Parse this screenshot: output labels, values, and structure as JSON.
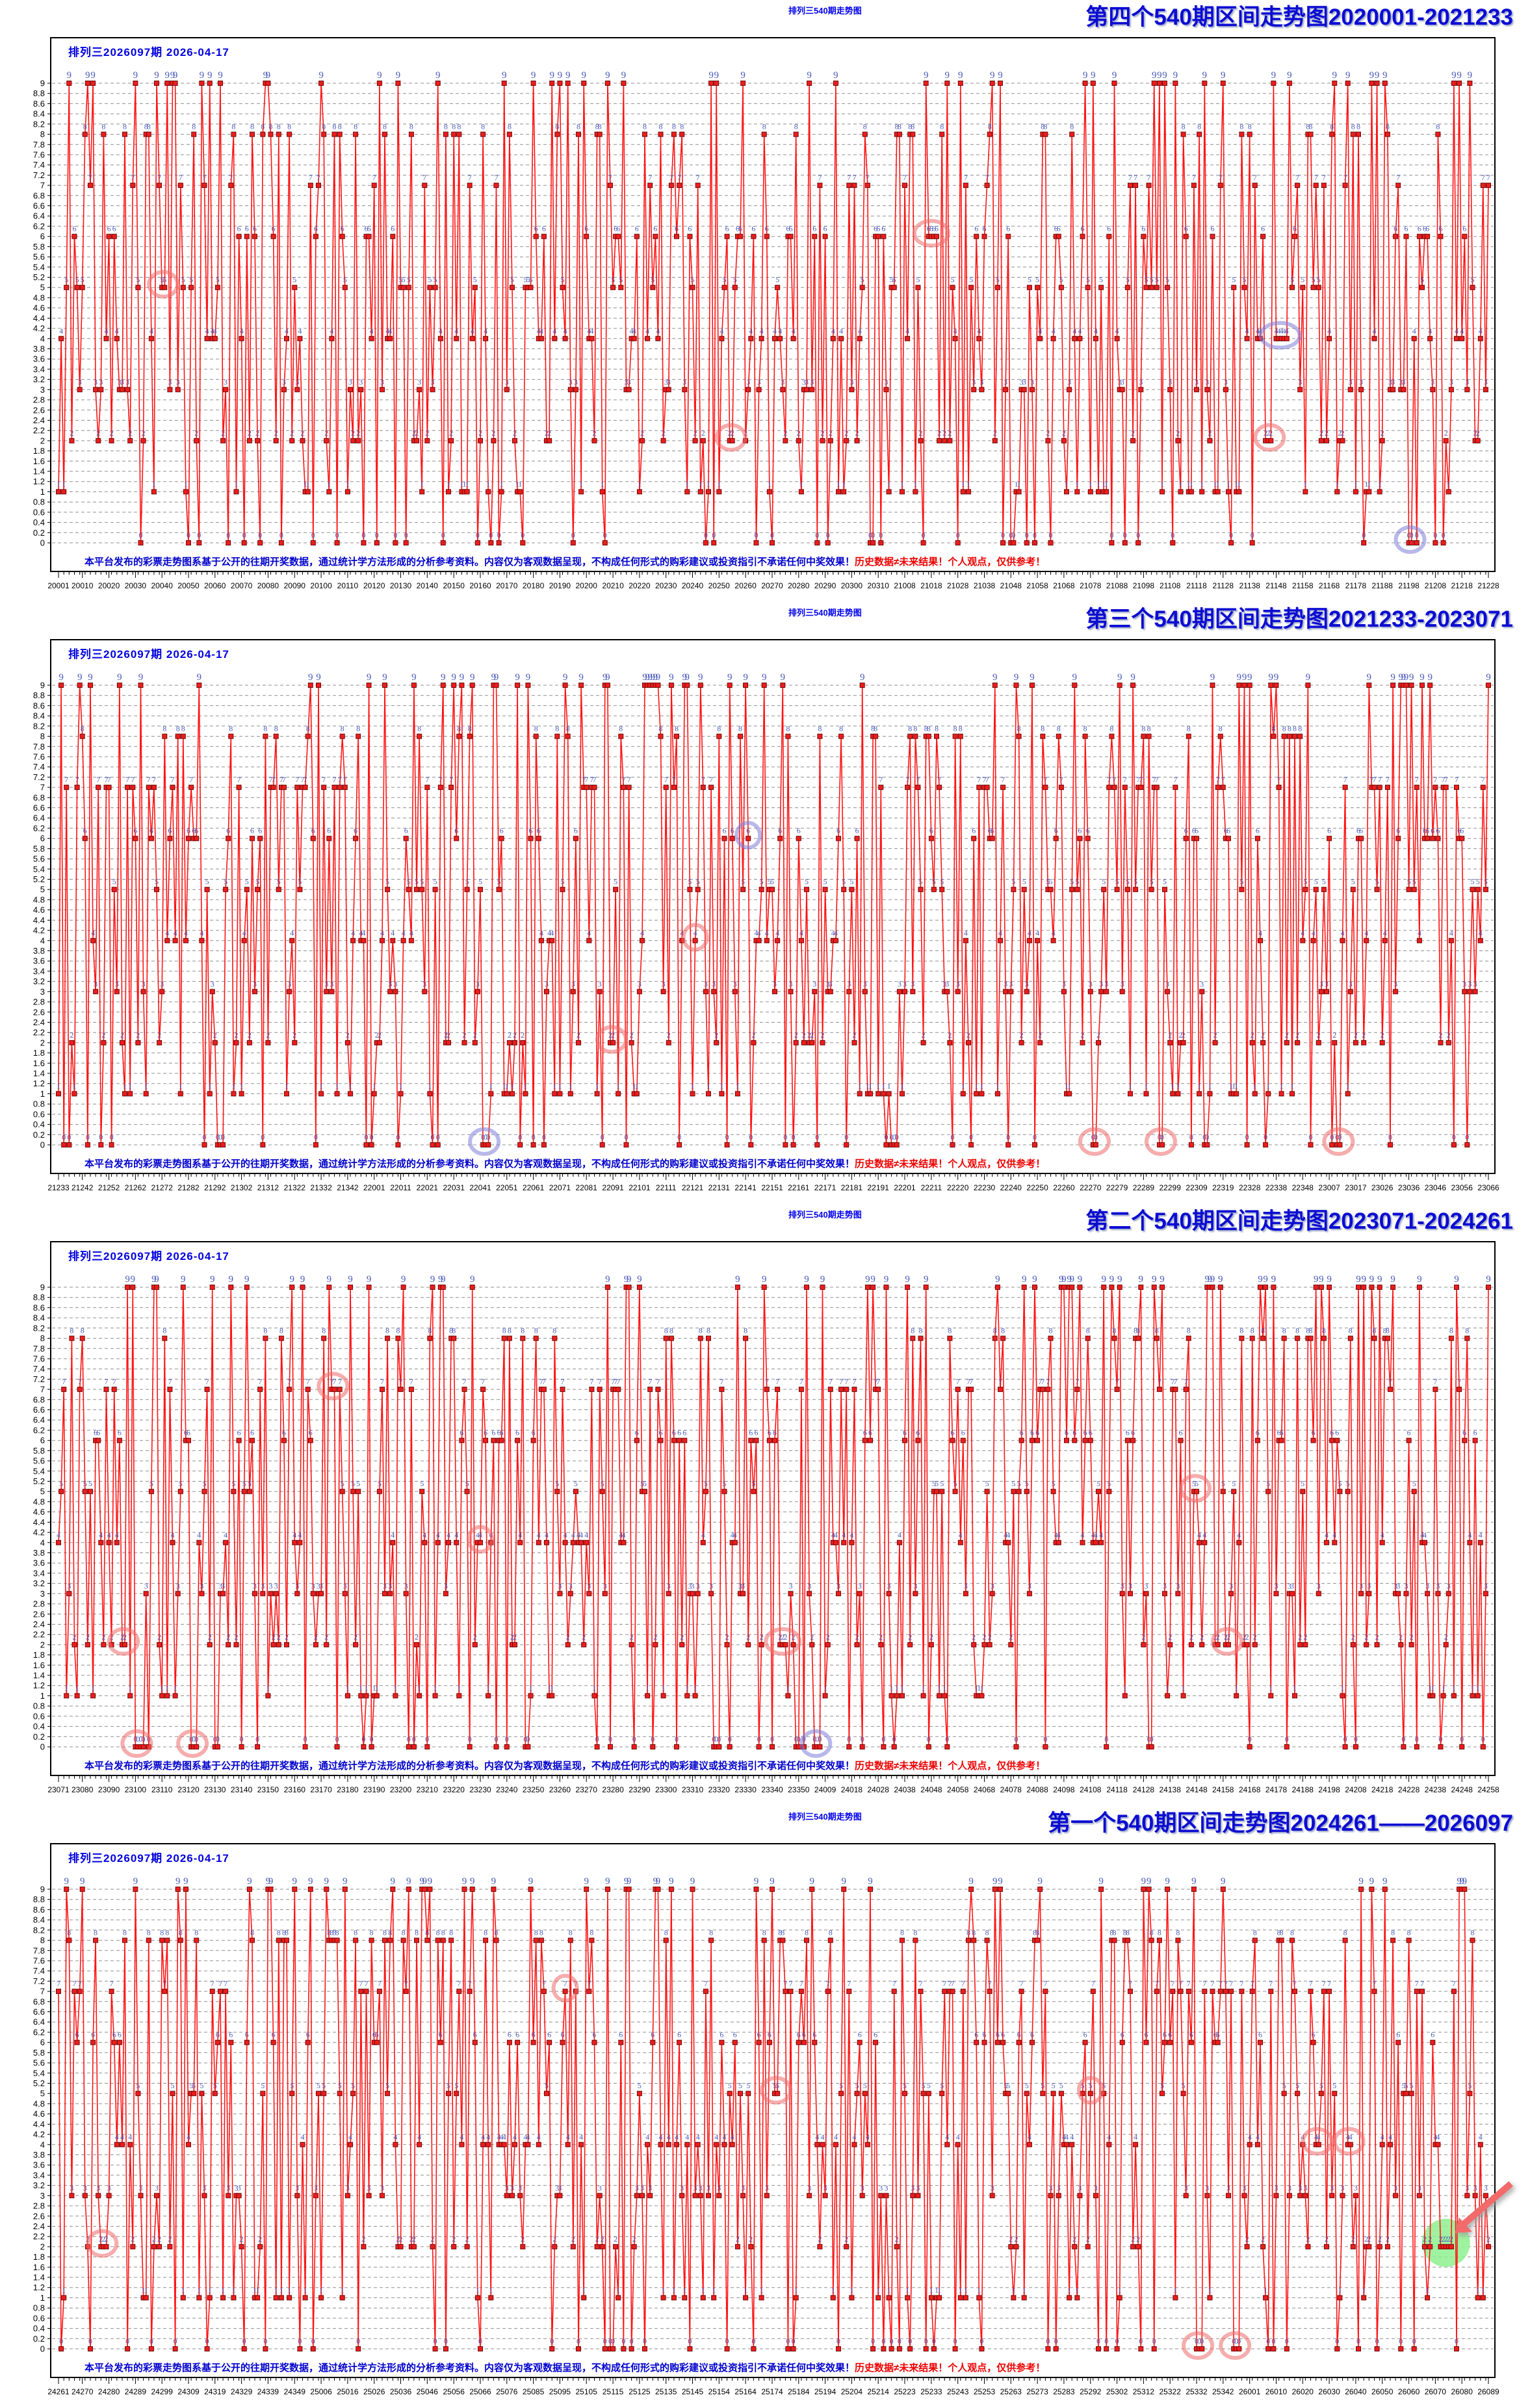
{
  "shared": {
    "mini_title": "排列三540期走势图",
    "draw_info": "排列三2026097期  2026-04-17",
    "disclaimer_blue": "本平台发布的彩票走势图系基于公开的往期开奖数据，通过统计学方法形成的分析参考资料。内容仅为客观数据呈现，不构成任何形式的购彩建议或投资指引不承诺任何中奖效果！",
    "disclaimer_red": "历史数据≠未来结果！个人观点，仅供参考！"
  },
  "colors": {
    "line": "#ff1414",
    "marker_fill": "#ee1c1c",
    "marker_stroke": "#6e0a0a",
    "point_label": "#4a5ab8",
    "grid": "#909090",
    "axis_text": "#000000",
    "ring_red": "#ee6a6a",
    "ring_blue": "#7d7dd8",
    "highlight_green": "#8ef08e",
    "arrow_red": "#f26a6a"
  },
  "axis": {
    "y_tick_labels": [
      "9",
      "8.8",
      "8.6",
      "8.4",
      "8.2",
      "8",
      "7.8",
      "7.6",
      "7.4",
      "7.2",
      "7",
      "6.8",
      "6.6",
      "6.4",
      "6.2",
      "6",
      "5.8",
      "5.6",
      "5.4",
      "5.2",
      "5",
      "4.8",
      "4.6",
      "4.4",
      "4.2",
      "4",
      "3.8",
      "3.6",
      "3.4",
      "3.2",
      "3",
      "2.8",
      "2.6",
      "2.4",
      "2.2",
      "2",
      "1.8",
      "1.6",
      "1.4",
      "1.2",
      "1",
      "0.8",
      "0.6",
      "0.4",
      "0.2",
      "0"
    ]
  },
  "panels": [
    {
      "title": "第四个540期区间走势图2020001-2021233"
    },
    {
      "title": "第三个540期区间走势图2021233-2023071"
    },
    {
      "title": "第二个540期区间走势图2023071-2024261"
    },
    {
      "title": "第一个540期区间走势图2024261——2026097"
    }
  ],
  "chart_data": [
    {
      "type": "line",
      "title": "第四个540期区间走势图2020001-2021233",
      "ylim": [
        0,
        9
      ],
      "y_step": 0.2,
      "legend": "none",
      "grid": "dashed-horizontal",
      "x_tick_labels": [
        "20001",
        "20010",
        "20020",
        "20030",
        "20040",
        "20050",
        "20060",
        "20070",
        "20080",
        "20090",
        "20100",
        "20110",
        "20120",
        "20130",
        "20140",
        "20150",
        "20160",
        "20170",
        "20180",
        "20190",
        "20200",
        "20210",
        "20220",
        "20230",
        "20240",
        "20250",
        "20260",
        "20270",
        "20280",
        "20290",
        "20300",
        "20310",
        "21008",
        "21018",
        "21028",
        "21038",
        "21048",
        "21058",
        "21068",
        "21078",
        "21088",
        "21098",
        "21108",
        "21118",
        "21128",
        "21138",
        "21148",
        "21158",
        "21168",
        "21178",
        "21188",
        "21198",
        "21208",
        "21218",
        "21228"
      ],
      "values_digits": "141592653589793238462643383279502884197169399375105820974944592307816406286208998628034825342117067982148086513282306647093844609550582231725359408128481117450284102701938521105559644622948954930381964428810975665933446128475648233786783165271201909145648566923460348610454326648213393607260249141273724587006606315588174881520920962829254091715364367892590360011330530548820466521384146951941511609433057270365759591953092186117381932611793105118548074462379962749567351885752724891227938183011949129833673362440656643086021394946395224737",
      "annotations": [
        {
          "i": 39,
          "v": 5,
          "len": 2,
          "c": "red"
        },
        {
          "i": 328,
          "v": 6,
          "len": 3,
          "c": "red"
        },
        {
          "i": 253,
          "v": 2,
          "len": 2,
          "c": "red"
        },
        {
          "i": 456,
          "v": 2,
          "len": 2,
          "c": "red"
        },
        {
          "i": 459,
          "v": 4,
          "len": 4,
          "c": "blue"
        },
        {
          "i": 509,
          "v": 0,
          "len": 2,
          "c": "blue"
        }
      ]
    },
    {
      "type": "line",
      "title": "第三个540期区间走势图2021233-2023071",
      "ylim": [
        0,
        9
      ],
      "y_step": 0.2,
      "legend": "none",
      "grid": "dashed-horizontal",
      "x_tick_labels": [
        "21233",
        "21242",
        "21252",
        "21262",
        "21272",
        "21282",
        "21292",
        "21302",
        "21312",
        "21322",
        "21332",
        "21342",
        "22001",
        "22011",
        "22021",
        "22031",
        "22041",
        "22051",
        "22061",
        "22071",
        "22081",
        "22091",
        "22101",
        "22111",
        "22121",
        "22131",
        "22141",
        "22151",
        "22161",
        "22171",
        "22181",
        "22191",
        "22201",
        "22211",
        "22220",
        "22230",
        "22240",
        "22250",
        "22260",
        "22270",
        "22279",
        "22289",
        "22299",
        "22309",
        "22319",
        "22328",
        "22338",
        "22348",
        "23007",
        "23017",
        "23026",
        "23036",
        "23046",
        "23056",
        "23066"
      ],
      "values_digits": "190702179860943702770539217176293176752384674818467669405132000568127145263560827785771342757789609173637178721468440901224953430146549585371050792279689258923542019956112129021960864034418159813629774771309960518707211349999998372978049951059731732816096318595024459455346908302642522308253344685035261931188171010003137838752886587533208381420617177669147303598253490428755468731159562863882353787593751957781857780532171226806613001927876611195909216420198971828182845904523536028747135266249775724709369995957496696762772407663035354759",
      "annotations": [
        {
          "i": 260,
          "v": 6,
          "len": 1,
          "c": "blue"
        },
        {
          "i": 240,
          "v": 4,
          "len": 1,
          "c": "red"
        },
        {
          "i": 208,
          "v": 2,
          "len": 2,
          "c": "red"
        },
        {
          "i": 160,
          "v": 0,
          "len": 2,
          "c": "blue"
        },
        {
          "i": 390,
          "v": 0,
          "len": 2,
          "c": "red"
        },
        {
          "i": 415,
          "v": 0,
          "len": 2,
          "c": "red"
        },
        {
          "i": 482,
          "v": 0,
          "len": 2,
          "c": "red"
        }
      ]
    },
    {
      "type": "line",
      "title": "第二个540期区间走势图2023071-2024261",
      "ylim": [
        0,
        9
      ],
      "y_step": 0.2,
      "legend": "none",
      "grid": "dashed-horizontal",
      "x_tick_labels": [
        "23071",
        "23080",
        "23090",
        "23100",
        "23110",
        "23120",
        "23130",
        "23140",
        "23150",
        "23160",
        "23170",
        "23180",
        "23190",
        "23200",
        "23210",
        "23220",
        "23230",
        "23240",
        "23250",
        "23260",
        "23270",
        "23280",
        "23290",
        "23300",
        "23310",
        "23320",
        "23330",
        "23340",
        "23350",
        "24009",
        "24018",
        "24028",
        "24038",
        "24048",
        "24058",
        "24068",
        "24078",
        "24088",
        "24098",
        "24108",
        "24118",
        "24128",
        "24138",
        "24148",
        "24158",
        "24168",
        "24178",
        "24188",
        "24198",
        "24208",
        "24218",
        "24228",
        "24238",
        "24248",
        "24258"
      ],
      "values_digits": "457138217852516642742746639193200305992181741359662904357290033429526059563073813232862794349076323382988075319525101901157383418793070215408914993488416750924476146066808226480016847741185374234544243710753907774499206955170276183860626133138458300075204493382656029760673711320070932870912744374704723069697720931014169283681902551510865746377211125238978442505695369677078544996996794686445490598793163688923009879312773617821542499922957635148220826989519366803318252886939849646510582093923982948879332036250944311730123819706841614039",
      "annotations": [
        {
          "i": 103,
          "v": 7,
          "len": 2,
          "c": "red"
        },
        {
          "i": 159,
          "v": 4,
          "len": 1,
          "c": "red"
        },
        {
          "i": 428,
          "v": 5,
          "len": 2,
          "c": "red"
        },
        {
          "i": 24,
          "v": 2,
          "len": 2,
          "c": "red"
        },
        {
          "i": 272,
          "v": 2,
          "len": 3,
          "c": "red"
        },
        {
          "i": 440,
          "v": 2,
          "len": 2,
          "c": "red"
        },
        {
          "i": 29,
          "v": 0,
          "len": 2,
          "c": "red"
        },
        {
          "i": 50,
          "v": 0,
          "len": 2,
          "c": "red"
        },
        {
          "i": 285,
          "v": 0,
          "len": 2,
          "c": "blue"
        }
      ]
    },
    {
      "type": "line",
      "title": "第一个540期区间走势图2024261——2026097",
      "ylim": [
        0,
        9
      ],
      "y_step": 0.2,
      "legend": "none",
      "grid": "dashed-horizontal",
      "x_tick_labels": [
        "24261",
        "24270",
        "24280",
        "24289",
        "24299",
        "24309",
        "24319",
        "24329",
        "24339",
        "24349",
        "25006",
        "25016",
        "25026",
        "25036",
        "25046",
        "25056",
        "25066",
        "25076",
        "25085",
        "25095",
        "25105",
        "25115",
        "25125",
        "25135",
        "25145",
        "25154",
        "25164",
        "25174",
        "25184",
        "25194",
        "25204",
        "25214",
        "25223",
        "25233",
        "25243",
        "25253",
        "25263",
        "25273",
        "25283",
        "25292",
        "25302",
        "25312",
        "25322",
        "25332",
        "25342",
        "26001",
        "26010",
        "26020",
        "26030",
        "26040",
        "26050",
        "26060",
        "26070",
        "26080",
        "26089"
      ],
      "values_digits": "701983767932068328237646480429531180232878250981945581530175671736133206981125099618188159304169035159888851934580727386673858942287922849989208680582574927961048419844436346324496848756023362482704197862320900216099023530436994184914631409343173814364054625315209618369088870701676839642437814059271456354906130310720851038375051011574770417189861068739696552126715468895703503544142135623730950488016887242096980785696718753769480731766797379907324784621070388503875343276415727350138462309122970249248360558507372126441214970999358314132",
      "annotations": [
        {
          "i": 191,
          "v": 7,
          "len": 1,
          "c": "red"
        },
        {
          "i": 270,
          "v": 5,
          "len": 2,
          "c": "red"
        },
        {
          "i": 389,
          "v": 5,
          "len": 1,
          "c": "red"
        },
        {
          "i": 474,
          "v": 4,
          "len": 2,
          "c": "red"
        },
        {
          "i": 486,
          "v": 4,
          "len": 2,
          "c": "red"
        },
        {
          "i": 16,
          "v": 2,
          "len": 2,
          "c": "red"
        },
        {
          "i": 521,
          "v": 2,
          "len": 5,
          "c": "green",
          "arrow": true
        },
        {
          "i": 429,
          "v": 0,
          "len": 2,
          "c": "red"
        },
        {
          "i": 443,
          "v": 0,
          "len": 2,
          "c": "red"
        }
      ]
    }
  ]
}
